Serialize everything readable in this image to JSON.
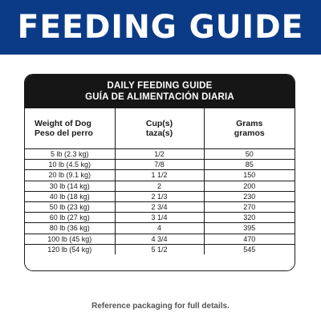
{
  "banner": {
    "title": "FEEDING GUIDE",
    "background": "#0b3b86"
  },
  "card": {
    "title_en": "DAILY FEEDING GUIDE",
    "title_es": "GUÍA DE ALIMENTACIÓN DIARIA",
    "columns": [
      {
        "en": "Weight of Dog",
        "es": "Peso del perro"
      },
      {
        "en": "Cup(s)",
        "es": "taza(s)"
      },
      {
        "en": "Grams",
        "es": "gramos"
      }
    ],
    "rows": [
      [
        "5 lb (2.3 kg)",
        "1/2",
        "50"
      ],
      [
        "10 lb (4.5 kg)",
        "7/8",
        "85"
      ],
      [
        "20 lb (9.1 kg)",
        "1 1/2",
        "150"
      ],
      [
        "30 lb (14 kg)",
        "2",
        "200"
      ],
      [
        "40 lb (18 kg)",
        "2 1/3",
        "230"
      ],
      [
        "50 lb (23 kg)",
        "2 3/4",
        "270"
      ],
      [
        "60 lb (27 kg)",
        "3 1/4",
        "320"
      ],
      [
        "80 lb (36 kg)",
        "4",
        "395"
      ],
      [
        "100 lb (45 kg)",
        "4 3/4",
        "470"
      ],
      [
        "120 lb (54 kg)",
        "5 1/2",
        "545"
      ]
    ]
  },
  "footnote": "Reference packaging for full details."
}
